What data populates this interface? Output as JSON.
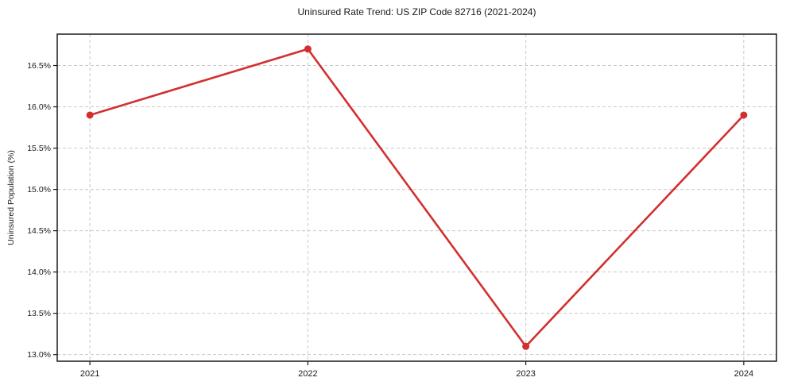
{
  "chart_data": {
    "type": "line",
    "title": "Uninsured Rate Trend: US ZIP Code 82716 (2021-2024)",
    "xlabel": "",
    "ylabel": "Uninsured Population (%)",
    "x": [
      2021,
      2022,
      2023,
      2024
    ],
    "x_tick_labels": [
      "2021",
      "2022",
      "2023",
      "2024"
    ],
    "series": [
      {
        "name": "uninsured-rate",
        "values": [
          15.9,
          16.7,
          13.1,
          15.9
        ],
        "color": "#d32f2f",
        "marker": "circle",
        "line_width": 2.6,
        "marker_radius": 4.5
      }
    ],
    "y_ticks": {
      "values": [
        13.0,
        13.5,
        14.0,
        14.5,
        15.0,
        15.5,
        16.0,
        16.5
      ],
      "labels": [
        "13.0%",
        "13.5%",
        "14.0%",
        "14.5%",
        "15.0%",
        "15.5%",
        "16.0%",
        "16.5%"
      ]
    },
    "xlim": [
      2020.85,
      2024.15
    ],
    "ylim": [
      12.92,
      16.88
    ],
    "grid": true,
    "grid_style": "dashed",
    "grid_color": "#c9c9c9",
    "spine_color": "#1a1a1a",
    "background_color": "#ffffff",
    "legend": "none"
  }
}
